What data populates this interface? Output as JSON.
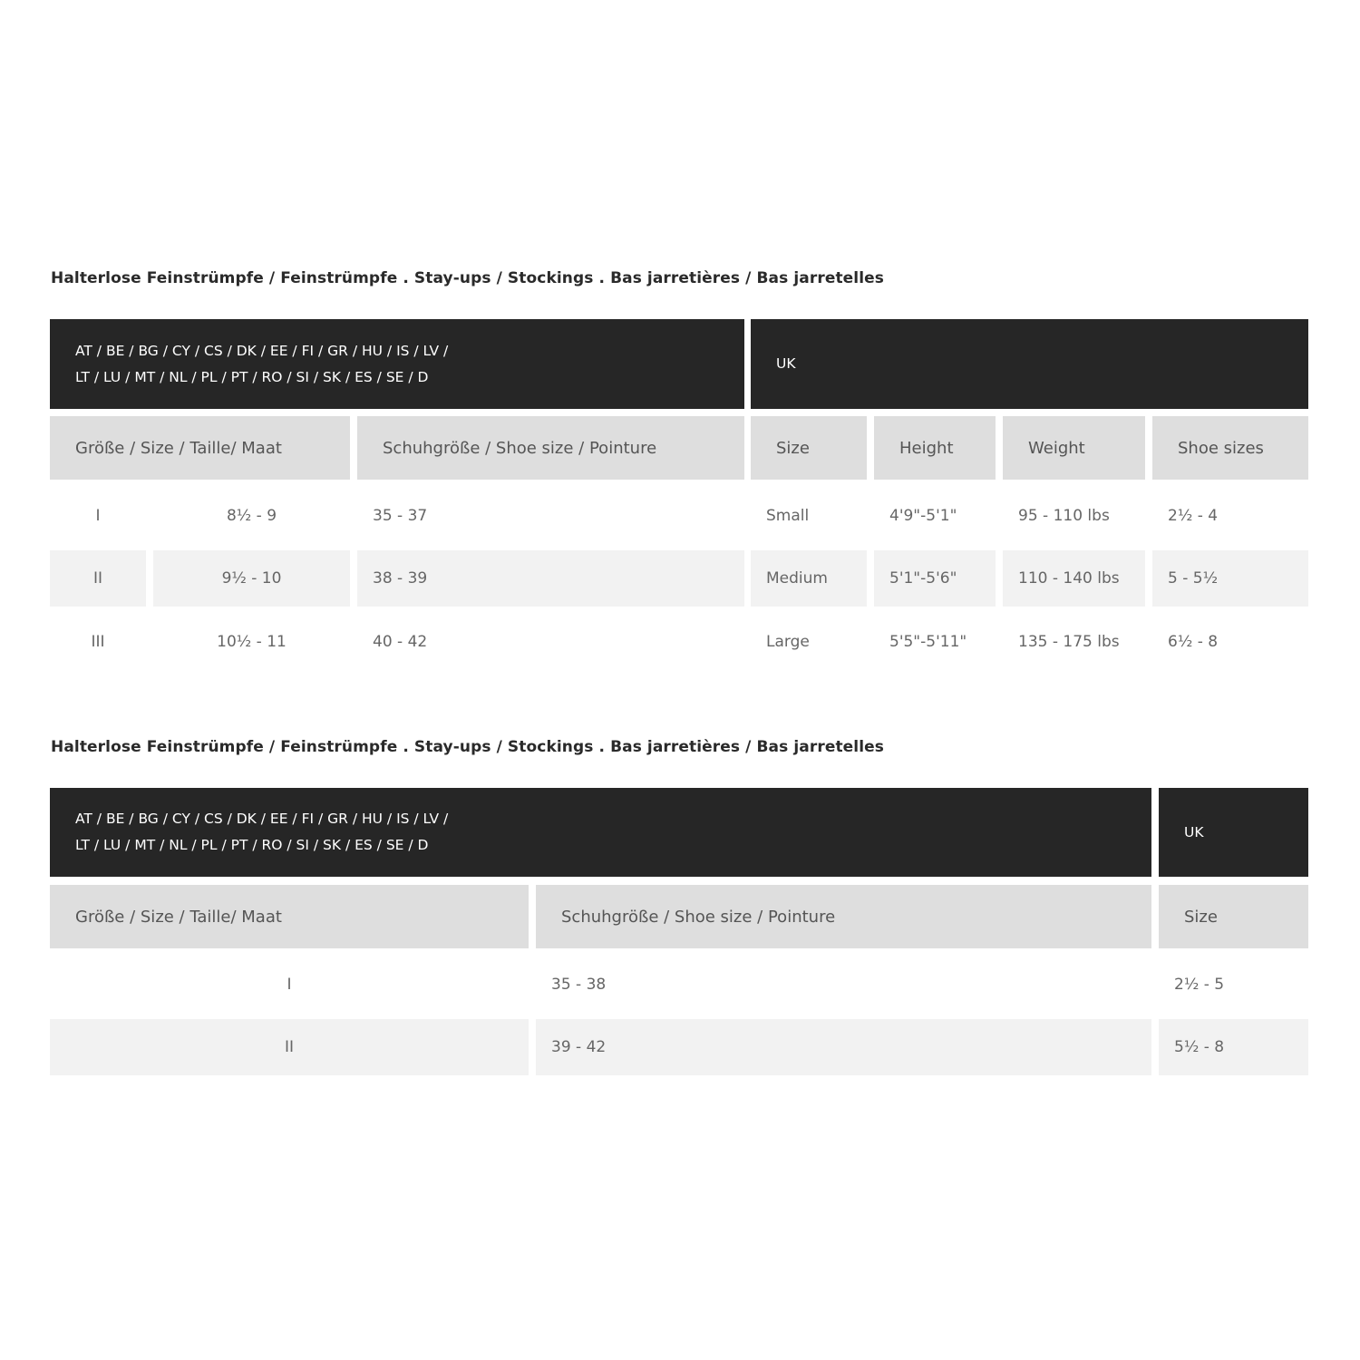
{
  "table1": {
    "title": "Halterlose Feinstrümpfe / Feinstrümpfe . Stay-ups / Stockings . Bas jarretières / Bas jarretelles",
    "eu_line1": "AT / BE / BG / CY / CS / DK / EE / FI / GR / HU / IS / LV /",
    "eu_line2": "LT / LU / MT / NL / PL / PT / RO / SI / SK / ES / SE / D",
    "uk": "UK",
    "headers": [
      "Größe / Size / Taille/ Maat",
      "Schuhgröße / Shoe size / Pointure",
      "Size",
      "Height",
      "Weight",
      "Shoe sizes"
    ],
    "rows": [
      [
        "I",
        "8½ - 9",
        "35 - 37",
        "Small",
        "4'9\"-5'1\"",
        "95 - 110 lbs",
        "2½ - 4"
      ],
      [
        "II",
        "9½ - 10",
        "38 - 39",
        "Medium",
        "5'1\"-5'6\"",
        "110 - 140 lbs",
        "5 - 5½"
      ],
      [
        "III",
        "10½ - 11",
        "40 - 42",
        "Large",
        "5'5\"-5'11\"",
        "135 - 175 lbs",
        "6½ - 8"
      ]
    ]
  },
  "table2": {
    "title": "Halterlose Feinstrümpfe / Feinstrümpfe . Stay-ups / Stockings . Bas jarretières / Bas jarretelles",
    "eu_line1": "AT / BE / BG / CY / CS / DK / EE / FI / GR / HU / IS / LV /",
    "eu_line2": "LT / LU / MT / NL / PL / PT / RO / SI / SK / ES / SE / D",
    "uk": "UK",
    "headers": [
      "Größe / Size / Taille/ Maat",
      "Schuhgröße / Shoe size / Pointure",
      "Size"
    ],
    "rows": [
      [
        "I",
        "35 - 38",
        "2½ - 5"
      ],
      [
        "II",
        "39 - 42",
        "5½ - 8"
      ]
    ]
  }
}
